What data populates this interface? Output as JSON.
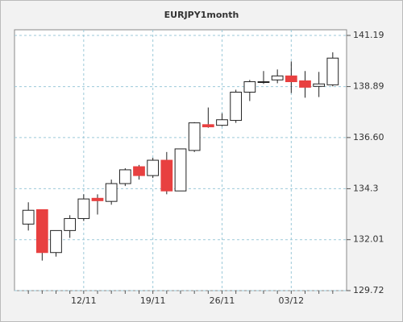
{
  "chart_data": {
    "type": "candlestick",
    "title": "EURJPY1month",
    "categories": [
      null,
      null,
      null,
      null,
      "12/11",
      null,
      null,
      null,
      null,
      "19/11",
      null,
      null,
      null,
      null,
      "26/11",
      null,
      null,
      null,
      null,
      "03/12",
      null,
      null,
      null
    ],
    "series": [
      {
        "up_color": "#ffffff",
        "down_color": "#e84040",
        "open": [
          132.71,
          133.36,
          131.43,
          132.42,
          132.96,
          133.87,
          133.73,
          134.53,
          135.29,
          134.89,
          135.58,
          134.2,
          136.02,
          137.18,
          137.15,
          137.37,
          138.64,
          139.08,
          139.19,
          139.37,
          139.15,
          138.9,
          138.97
        ],
        "high": [
          133.69,
          133.36,
          132.42,
          133.11,
          134.05,
          134.05,
          134.71,
          135.22,
          135.37,
          135.69,
          135.95,
          136.09,
          137.29,
          137.95,
          137.69,
          138.75,
          139.19,
          139.59,
          139.66,
          140.02,
          139.59,
          139.55,
          140.43
        ],
        "low": [
          132.42,
          131.07,
          131.25,
          132.09,
          132.85,
          133.14,
          133.58,
          134.42,
          134.71,
          134.78,
          134.05,
          134.2,
          135.95,
          137.04,
          137.11,
          137.26,
          138.24,
          139.01,
          139.04,
          138.6,
          138.39,
          138.42,
          138.9
        ],
        "close": [
          133.33,
          131.43,
          132.42,
          132.96,
          133.84,
          133.76,
          134.53,
          135.15,
          134.89,
          135.58,
          134.2,
          136.09,
          137.26,
          137.08,
          137.4,
          138.64,
          139.11,
          139.11,
          139.37,
          139.11,
          138.86,
          139.01,
          140.17
        ]
      }
    ],
    "ylim": [
      129.72,
      141.19
    ],
    "yticks": [
      129.72,
      132.01,
      134.3,
      {
        "value": 136.6,
        "label": "136.60"
      },
      138.89,
      141.19
    ],
    "grid": true
  }
}
